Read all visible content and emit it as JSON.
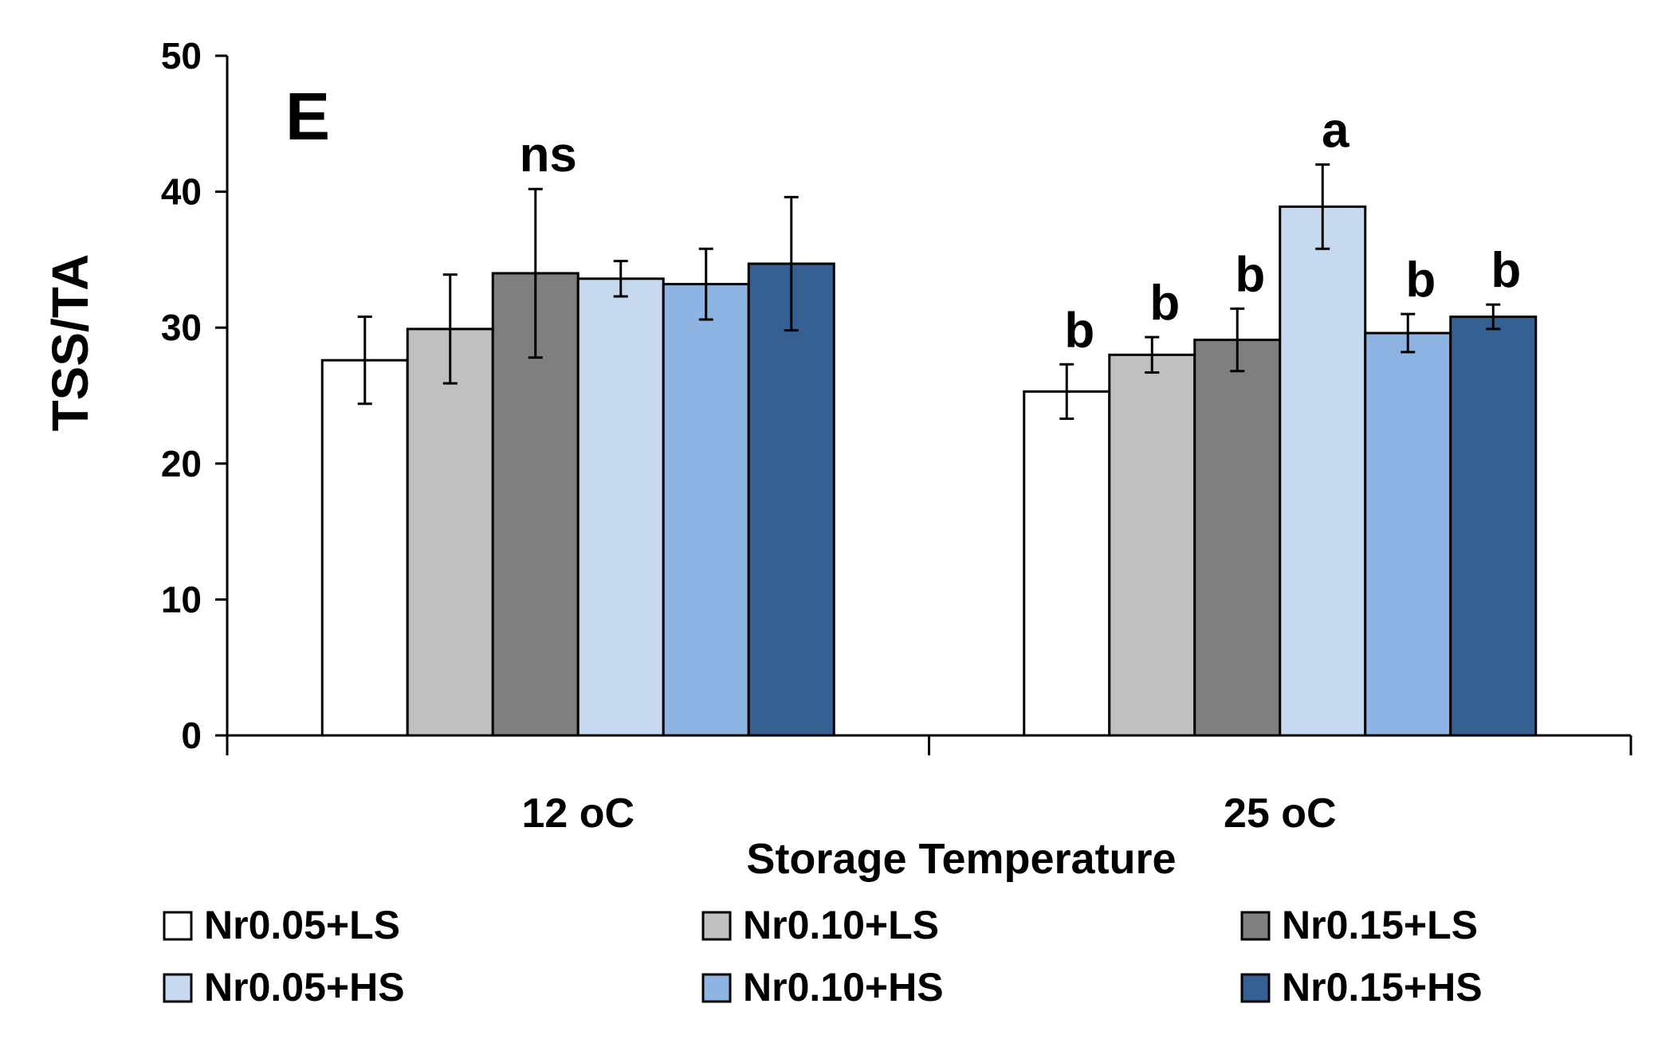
{
  "chart_data": {
    "type": "bar",
    "panel_label": "E",
    "title": "",
    "xlabel": "Storage Temperature",
    "ylabel": "TSS/TA",
    "ylim": [
      0,
      50
    ],
    "yticks": [
      "0",
      "10",
      "20",
      "30",
      "40",
      "50"
    ],
    "categories": [
      "12 oC",
      "25 oC"
    ],
    "series": [
      {
        "name": "Nr0.05+LS",
        "color": "#ffffff",
        "values": [
          27.6,
          25.3
        ],
        "errors": [
          3.2,
          2.0
        ]
      },
      {
        "name": "Nr0.10+LS",
        "color": "#c0c0c0",
        "values": [
          29.9,
          28.0
        ],
        "errors": [
          4.0,
          1.3
        ]
      },
      {
        "name": "Nr0.15+LS",
        "color": "#7f7f7f",
        "values": [
          34.0,
          29.1
        ],
        "errors": [
          6.2,
          2.3
        ]
      },
      {
        "name": "Nr0.05+HS",
        "color": "#c6d9f1",
        "values": [
          33.6,
          38.9
        ],
        "errors": [
          1.3,
          3.1
        ]
      },
      {
        "name": "Nr0.10+HS",
        "color": "#8db4e2",
        "values": [
          33.2,
          29.6
        ],
        "errors": [
          2.6,
          1.4
        ]
      },
      {
        "name": "Nr0.15+HS",
        "color": "#366092",
        "values": [
          34.7,
          30.8
        ],
        "errors": [
          4.9,
          0.9
        ]
      }
    ],
    "annotations": [
      {
        "category": "12 oC",
        "series": "Nr0.15+LS",
        "text": "ns"
      },
      {
        "category": "25 oC",
        "series": "Nr0.05+LS",
        "text": "b"
      },
      {
        "category": "25 oC",
        "series": "Nr0.10+LS",
        "text": "b"
      },
      {
        "category": "25 oC",
        "series": "Nr0.15+LS",
        "text": "b"
      },
      {
        "category": "25 oC",
        "series": "Nr0.05+HS",
        "text": "a"
      },
      {
        "category": "25 oC",
        "series": "Nr0.10+HS",
        "text": "b"
      },
      {
        "category": "25 oC",
        "series": "Nr0.15+HS",
        "text": "b"
      }
    ],
    "legend_position": "bottom",
    "grid": false
  }
}
